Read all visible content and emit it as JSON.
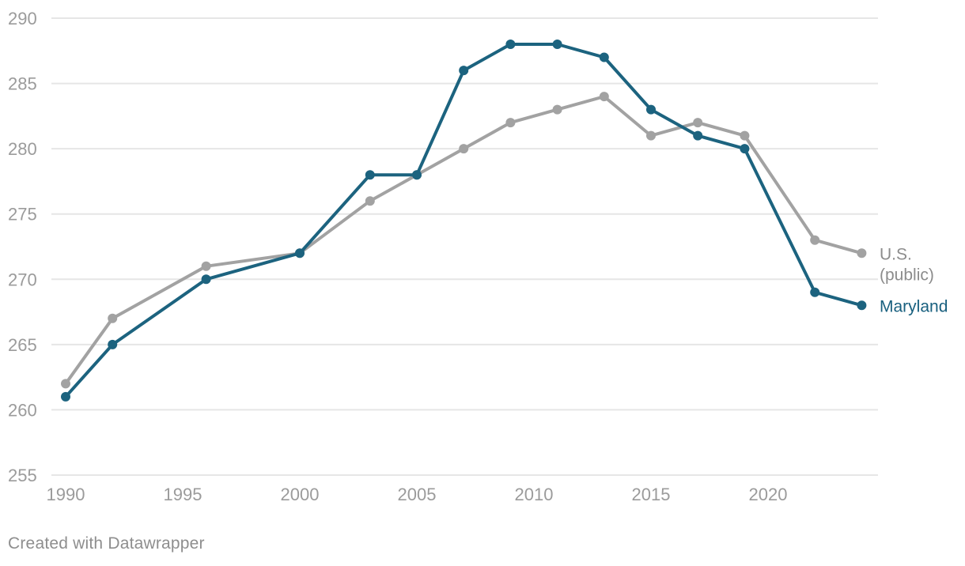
{
  "chart_data": {
    "type": "line",
    "x": [
      1990,
      1992,
      1996,
      2000,
      2003,
      2005,
      2007,
      2009,
      2011,
      2013,
      2015,
      2017,
      2019,
      2022,
      2024
    ],
    "series": [
      {
        "name": "U.S. (public)",
        "label_lines": [
          "U.S.",
          "(public)"
        ],
        "color": "#a2a2a2",
        "label_color": "#8c8c8c",
        "values": [
          262,
          267,
          271,
          272,
          276,
          278,
          280,
          282,
          283,
          284,
          281,
          282,
          281,
          273,
          272
        ]
      },
      {
        "name": "Maryland",
        "label_lines": [
          "Maryland"
        ],
        "color": "#1c637f",
        "label_color": "#19607f",
        "values": [
          261,
          265,
          270,
          272,
          278,
          278,
          286,
          288,
          288,
          287,
          283,
          281,
          280,
          269,
          268
        ]
      }
    ],
    "ylim": [
      255,
      290
    ],
    "yticks": [
      255,
      260,
      265,
      270,
      275,
      280,
      285,
      290
    ],
    "xticks": [
      1990,
      1995,
      2000,
      2005,
      2010,
      2015,
      2020
    ],
    "grid": "horizontal",
    "legend_position": "right-end-labels",
    "gridline_color": "#e6e6e6",
    "tick_label_color": "#9b9b9b"
  },
  "footer": {
    "credit": "Created with Datawrapper"
  }
}
